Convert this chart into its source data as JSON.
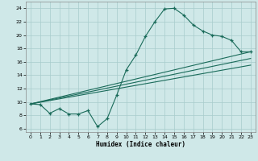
{
  "xlabel": "Humidex (Indice chaleur)",
  "ylabel": "",
  "bg_color": "#cfe8e8",
  "grid_color": "#a8cccc",
  "line_color": "#1a6b5a",
  "marker": "+",
  "xlim": [
    -0.5,
    23.5
  ],
  "ylim": [
    5.5,
    25.0
  ],
  "xticks": [
    0,
    1,
    2,
    3,
    4,
    5,
    6,
    7,
    8,
    9,
    10,
    11,
    12,
    13,
    14,
    15,
    16,
    17,
    18,
    19,
    20,
    21,
    22,
    23
  ],
  "yticks": [
    6,
    8,
    10,
    12,
    14,
    16,
    18,
    20,
    22,
    24
  ],
  "line1_x": [
    0,
    1,
    2,
    3,
    4,
    5,
    6,
    7,
    8,
    9,
    10,
    11,
    12,
    13,
    14,
    15,
    16,
    17,
    18,
    19,
    20,
    21,
    22,
    23
  ],
  "line1_y": [
    9.7,
    9.6,
    8.3,
    9.0,
    8.2,
    8.2,
    8.7,
    6.3,
    7.5,
    11.0,
    14.8,
    17.0,
    19.8,
    22.0,
    23.9,
    24.0,
    23.0,
    21.5,
    20.6,
    20.0,
    19.8,
    19.2,
    17.5,
    17.5
  ],
  "line2_x": [
    0,
    23
  ],
  "line2_y": [
    9.7,
    17.5
  ],
  "line3_x": [
    0,
    23
  ],
  "line3_y": [
    9.7,
    15.5
  ],
  "line4_x": [
    0,
    23
  ],
  "line4_y": [
    9.7,
    16.5
  ]
}
